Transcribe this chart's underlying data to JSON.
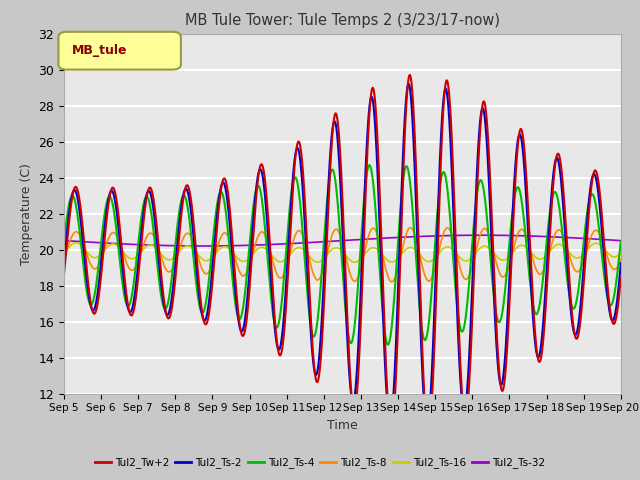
{
  "title": "MB Tule Tower: Tule Temps 2 (3/23/17-now)",
  "xlabel": "Time",
  "ylabel": "Temperature (C)",
  "ylim": [
    12,
    32
  ],
  "xlim": [
    0,
    15
  ],
  "xtick_labels": [
    "Sep 5",
    "Sep 6",
    "Sep 7",
    "Sep 8",
    "Sep 9",
    "Sep 10",
    "Sep 11",
    "Sep 12",
    "Sep 13",
    "Sep 14",
    "Sep 15",
    "Sep 16",
    "Sep 17",
    "Sep 18",
    "Sep 19",
    "Sep 20"
  ],
  "legend_label": "MB_tule",
  "series_colors": [
    "#cc0000",
    "#0000cc",
    "#00bb00",
    "#ff8800",
    "#cccc00",
    "#9900cc"
  ],
  "series_labels": [
    "Tul2_Tw+2",
    "Tul2_Ts-2",
    "Tul2_Ts-4",
    "Tul2_Ts-8",
    "Tul2_Ts-16",
    "Tul2_Ts-32"
  ]
}
